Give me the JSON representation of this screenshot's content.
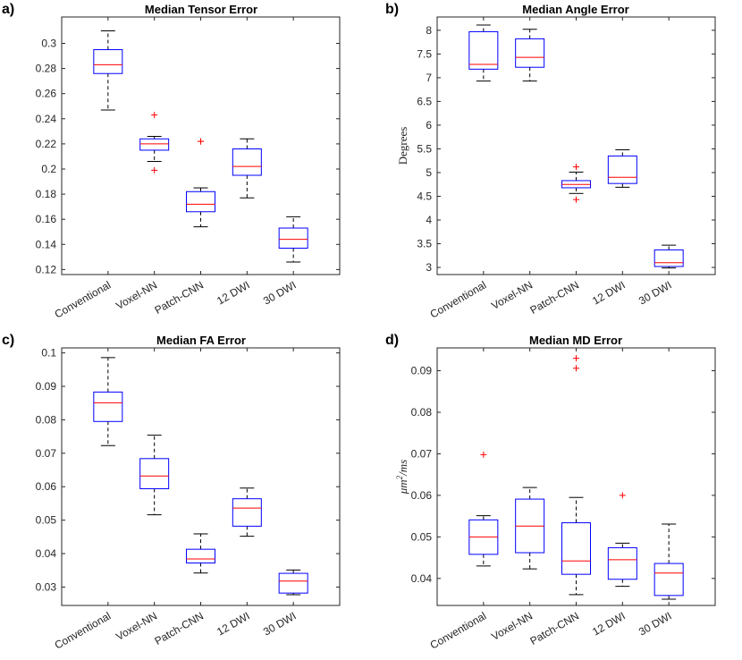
{
  "chart_data": [
    {
      "panel_label": "a)",
      "type": "box",
      "title": "Median Tensor Error",
      "ylabel": "",
      "ylim": [
        0.116,
        0.321
      ],
      "yticks": [
        0.12,
        0.14,
        0.16,
        0.18,
        0.2,
        0.22,
        0.24,
        0.26,
        0.28,
        0.3
      ],
      "ytick_labels": [
        "0.12",
        "0.14",
        "0.16",
        "0.18",
        "0.2",
        "0.22",
        "0.24",
        "0.26",
        "0.28",
        "0.3"
      ],
      "categories": [
        "Conventional",
        "Voxel-NN",
        "Patch-CNN",
        "12 DWI",
        "30 DWI"
      ],
      "boxes": [
        {
          "whisker_low": 0.247,
          "q1": 0.276,
          "median": 0.283,
          "q3": 0.295,
          "whisker_high": 0.31,
          "outliers": []
        },
        {
          "whisker_low": 0.206,
          "q1": 0.215,
          "median": 0.22,
          "q3": 0.224,
          "whisker_high": 0.226,
          "outliers": [
            0.243,
            0.199
          ]
        },
        {
          "whisker_low": 0.154,
          "q1": 0.166,
          "median": 0.172,
          "q3": 0.182,
          "whisker_high": 0.185,
          "outliers": [
            0.222,
            0.222
          ]
        },
        {
          "whisker_low": 0.177,
          "q1": 0.195,
          "median": 0.202,
          "q3": 0.216,
          "whisker_high": 0.224,
          "outliers": []
        },
        {
          "whisker_low": 0.126,
          "q1": 0.137,
          "median": 0.144,
          "q3": 0.153,
          "whisker_high": 0.162,
          "outliers": []
        }
      ]
    },
    {
      "panel_label": "b)",
      "type": "box",
      "title": "Median Angle Error",
      "ylabel": "Degrees",
      "ylim": [
        2.85,
        8.28
      ],
      "yticks": [
        3,
        3.5,
        4,
        4.5,
        5,
        5.5,
        6,
        6.5,
        7,
        7.5,
        8
      ],
      "ytick_labels": [
        "3",
        "3.5",
        "4",
        "4.5",
        "5",
        "5.5",
        "6",
        "6.5",
        "7",
        "7.5",
        "8"
      ],
      "categories": [
        "Conventional",
        "Voxel-NN",
        "Patch-CNN",
        "12 DWI",
        "30 DWI"
      ],
      "boxes": [
        {
          "whisker_low": 6.93,
          "q1": 7.18,
          "median": 7.28,
          "q3": 7.97,
          "whisker_high": 8.11,
          "outliers": []
        },
        {
          "whisker_low": 6.93,
          "q1": 7.22,
          "median": 7.43,
          "q3": 7.82,
          "whisker_high": 8.02,
          "outliers": []
        },
        {
          "whisker_low": 4.56,
          "q1": 4.68,
          "median": 4.75,
          "q3": 4.83,
          "whisker_high": 5.01,
          "outliers": [
            5.12,
            4.43
          ]
        },
        {
          "whisker_low": 4.69,
          "q1": 4.77,
          "median": 4.9,
          "q3": 5.35,
          "whisker_high": 5.48,
          "outliers": []
        },
        {
          "whisker_low": 2.99,
          "q1": 3.02,
          "median": 3.1,
          "q3": 3.37,
          "whisker_high": 3.47,
          "outliers": []
        }
      ]
    },
    {
      "panel_label": "c)",
      "type": "box",
      "title": "Median FA Error",
      "ylabel": "",
      "ylim": [
        0.0245,
        0.1015
      ],
      "yticks": [
        0.03,
        0.04,
        0.05,
        0.06,
        0.07,
        0.08,
        0.09,
        0.1
      ],
      "ytick_labels": [
        "0.03",
        "0.04",
        "0.05",
        "0.06",
        "0.07",
        "0.08",
        "0.09",
        "0.1"
      ],
      "categories": [
        "Conventional",
        "Voxel-NN",
        "Patch-CNN",
        "12 DWI",
        "30 DWI"
      ],
      "boxes": [
        {
          "whisker_low": 0.0723,
          "q1": 0.0795,
          "median": 0.0851,
          "q3": 0.0883,
          "whisker_high": 0.0986,
          "outliers": []
        },
        {
          "whisker_low": 0.0516,
          "q1": 0.0594,
          "median": 0.0632,
          "q3": 0.0684,
          "whisker_high": 0.0754,
          "outliers": []
        },
        {
          "whisker_low": 0.0342,
          "q1": 0.0372,
          "median": 0.0384,
          "q3": 0.0413,
          "whisker_high": 0.0459,
          "outliers": []
        },
        {
          "whisker_low": 0.0452,
          "q1": 0.0482,
          "median": 0.0536,
          "q3": 0.0564,
          "whisker_high": 0.0596,
          "outliers": []
        },
        {
          "whisker_low": 0.0277,
          "q1": 0.0282,
          "median": 0.0318,
          "q3": 0.0341,
          "whisker_high": 0.0351,
          "outliers": []
        }
      ]
    },
    {
      "panel_label": "d)",
      "type": "box",
      "title": "Median MD Error",
      "ylabel_main": "μm",
      "ylabel_sup": "2",
      "ylabel_tail": "/ms",
      "ylim": [
        0.0335,
        0.0955
      ],
      "yticks": [
        0.04,
        0.05,
        0.06,
        0.07,
        0.08,
        0.09
      ],
      "ytick_labels": [
        "0.04",
        "0.05",
        "0.06",
        "0.07",
        "0.08",
        "0.09"
      ],
      "categories": [
        "Conventional",
        "Voxel-NN",
        "Patch-CNN",
        "12 DWI",
        "30 DWI"
      ],
      "boxes": [
        {
          "whisker_low": 0.043,
          "q1": 0.0458,
          "median": 0.05,
          "q3": 0.0541,
          "whisker_high": 0.0551,
          "outliers": [
            0.0698
          ]
        },
        {
          "whisker_low": 0.0423,
          "q1": 0.0462,
          "median": 0.0526,
          "q3": 0.0591,
          "whisker_high": 0.0619,
          "outliers": []
        },
        {
          "whisker_low": 0.0361,
          "q1": 0.041,
          "median": 0.0442,
          "q3": 0.0534,
          "whisker_high": 0.0595,
          "outliers": [
            0.093,
            0.0906
          ]
        },
        {
          "whisker_low": 0.0381,
          "q1": 0.0398,
          "median": 0.0445,
          "q3": 0.0474,
          "whisker_high": 0.0485,
          "outliers": [
            0.06
          ]
        },
        {
          "whisker_low": 0.035,
          "q1": 0.0359,
          "median": 0.0413,
          "q3": 0.0436,
          "whisker_high": 0.0531,
          "outliers": []
        }
      ]
    }
  ],
  "colors": {
    "box": "#0000ff",
    "median": "#ff0000",
    "whisker": "#000000",
    "outlier": "#ff0000",
    "axis": "#262626"
  }
}
